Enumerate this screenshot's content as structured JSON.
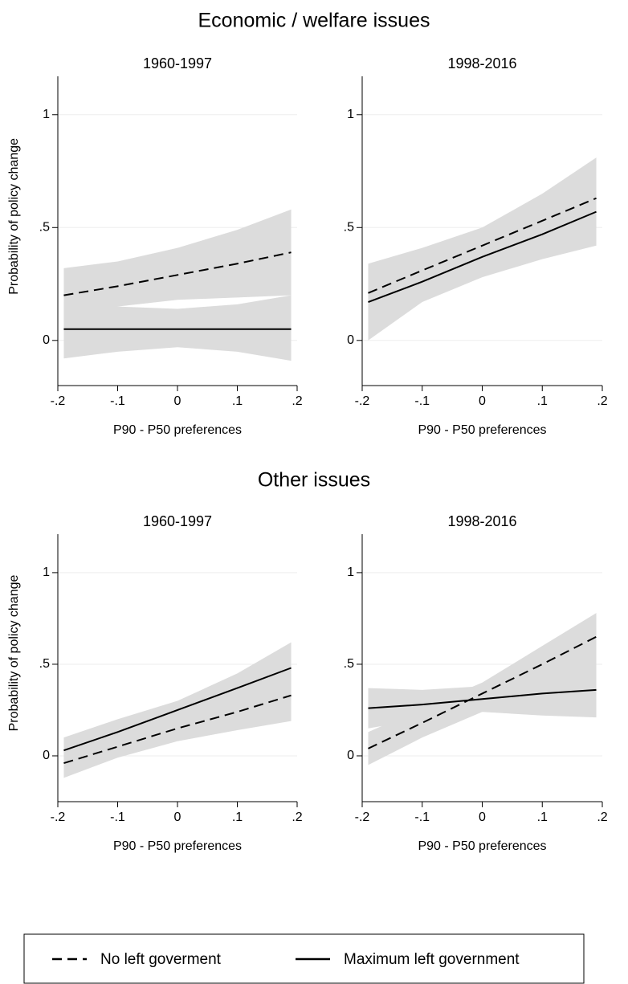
{
  "titles": [
    "Economic / welfare issues",
    "Other issues"
  ],
  "legend": "bottom",
  "chart_data": [
    {
      "type": "line",
      "title": "1960-1997",
      "x_label": "P90 - P50 preferences",
      "y_label": "Probability of policy change",
      "x": [
        -0.19,
        -0.1,
        0,
        0.1,
        0.19
      ],
      "xlim": [
        -0.2,
        0.2
      ],
      "xticks": [
        {
          "value": -0.2,
          "label": "-.2"
        },
        {
          "value": -0.1,
          "label": "-.1"
        },
        0,
        {
          "value": 0.1,
          "label": ".1"
        },
        {
          "value": 0.2,
          "label": ".2"
        }
      ],
      "ylim": [
        -0.2,
        1.17
      ],
      "yticks": [
        0,
        {
          "value": 0.5,
          "label": ".5"
        },
        1
      ],
      "grid": true,
      "band_color": "#dcdcdc",
      "series": [
        {
          "name": "No left goverment",
          "color": "#000000",
          "dashed": true,
          "values": [
            0.2,
            0.24,
            0.29,
            0.34,
            0.39
          ],
          "lower": [
            0.08,
            0.15,
            0.18,
            0.19,
            0.2
          ],
          "upper": [
            0.32,
            0.35,
            0.41,
            0.49,
            0.58
          ]
        },
        {
          "name": "Maximum left government",
          "color": "#000000",
          "dashed": false,
          "values": [
            0.05,
            0.05,
            0.05,
            0.05,
            0.05
          ],
          "lower": [
            -0.08,
            -0.05,
            -0.03,
            -0.05,
            -0.09
          ],
          "upper": [
            0.17,
            0.15,
            0.14,
            0.16,
            0.2
          ]
        }
      ]
    },
    {
      "type": "line",
      "title": "1998-2016",
      "x_label": "P90 - P50 preferences",
      "x": [
        -0.19,
        -0.1,
        0,
        0.1,
        0.19
      ],
      "xlim": [
        -0.2,
        0.2
      ],
      "xticks": [
        {
          "value": -0.2,
          "label": "-.2"
        },
        {
          "value": -0.1,
          "label": "-.1"
        },
        0,
        {
          "value": 0.1,
          "label": ".1"
        },
        {
          "value": 0.2,
          "label": ".2"
        }
      ],
      "ylim": [
        -0.2,
        1.17
      ],
      "yticks": [
        0,
        {
          "value": 0.5,
          "label": ".5"
        },
        1
      ],
      "grid": true,
      "band_color": "#dcdcdc",
      "series": [
        {
          "name": "No left goverment",
          "color": "#000000",
          "dashed": true,
          "values": [
            0.21,
            0.31,
            0.42,
            0.53,
            0.63
          ],
          "lower": [
            0.09,
            0.21,
            0.33,
            0.41,
            0.46
          ],
          "upper": [
            0.34,
            0.41,
            0.5,
            0.65,
            0.81
          ]
        },
        {
          "name": "Maximum left government",
          "color": "#000000",
          "dashed": false,
          "values": [
            0.17,
            0.26,
            0.37,
            0.47,
            0.57
          ],
          "lower": [
            0,
            0.17,
            0.28,
            0.36,
            0.42
          ],
          "upper": [
            0.32,
            0.38,
            0.46,
            0.6,
            0.73
          ]
        }
      ]
    },
    {
      "type": "line",
      "title": "1960-1997",
      "x_label": "P90 - P50 preferences",
      "y_label": "Probability of policy change",
      "x": [
        -0.19,
        -0.1,
        0,
        0.1,
        0.19
      ],
      "xlim": [
        -0.2,
        0.2
      ],
      "xticks": [
        {
          "value": -0.2,
          "label": "-.2"
        },
        {
          "value": -0.1,
          "label": "-.1"
        },
        0,
        {
          "value": 0.1,
          "label": ".1"
        },
        {
          "value": 0.2,
          "label": ".2"
        }
      ],
      "ylim": [
        -0.25,
        1.21
      ],
      "yticks": [
        0,
        {
          "value": 0.5,
          "label": ".5"
        },
        1
      ],
      "grid": true,
      "band_color": "#dcdcdc",
      "series": [
        {
          "name": "No left goverment",
          "color": "#000000",
          "dashed": true,
          "values": [
            -0.04,
            0.05,
            0.15,
            0.24,
            0.33
          ],
          "lower": [
            -0.12,
            -0.01,
            0.08,
            0.14,
            0.19
          ],
          "upper": [
            0.04,
            0.12,
            0.22,
            0.33,
            0.45
          ]
        },
        {
          "name": "Maximum left government",
          "color": "#000000",
          "dashed": false,
          "values": [
            0.03,
            0.13,
            0.25,
            0.37,
            0.48
          ],
          "lower": [
            -0.05,
            0.06,
            0.15,
            0.22,
            0.3
          ],
          "upper": [
            0.1,
            0.2,
            0.3,
            0.45,
            0.62
          ]
        }
      ]
    },
    {
      "type": "line",
      "title": "1998-2016",
      "x_label": "P90 - P50 preferences",
      "x": [
        -0.19,
        -0.1,
        0,
        0.1,
        0.19
      ],
      "xlim": [
        -0.2,
        0.2
      ],
      "xticks": [
        {
          "value": -0.2,
          "label": "-.2"
        },
        {
          "value": -0.1,
          "label": "-.1"
        },
        0,
        {
          "value": 0.1,
          "label": ".1"
        },
        {
          "value": 0.2,
          "label": ".2"
        }
      ],
      "ylim": [
        -0.25,
        1.21
      ],
      "yticks": [
        0,
        {
          "value": 0.5,
          "label": ".5"
        },
        1
      ],
      "grid": true,
      "band_color": "#dcdcdc",
      "series": [
        {
          "name": "No left goverment",
          "color": "#000000",
          "dashed": true,
          "values": [
            0.04,
            0.18,
            0.34,
            0.5,
            0.65
          ],
          "lower": [
            -0.05,
            0.1,
            0.24,
            0.38,
            0.5
          ],
          "upper": [
            0.13,
            0.26,
            0.4,
            0.6,
            0.78
          ]
        },
        {
          "name": "Maximum left government",
          "color": "#000000",
          "dashed": false,
          "values": [
            0.26,
            0.28,
            0.31,
            0.34,
            0.36
          ],
          "lower": [
            0.15,
            0.2,
            0.24,
            0.22,
            0.21
          ],
          "upper": [
            0.37,
            0.36,
            0.38,
            0.44,
            0.51
          ]
        }
      ]
    }
  ]
}
